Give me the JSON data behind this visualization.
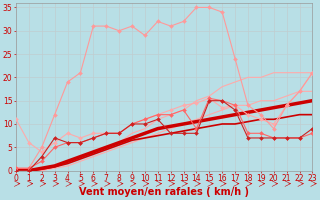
{
  "background_color": "#b8dfe6",
  "grid_color": "#c0cdd0",
  "xlabel": "Vent moyen/en rafales ( km/h )",
  "xlabel_color": "#cc0000",
  "xlabel_fontsize": 7,
  "tick_color": "#cc0000",
  "tick_fontsize": 5.5,
  "xlim": [
    0,
    23
  ],
  "ylim": [
    0,
    36
  ],
  "yticks": [
    0,
    5,
    10,
    15,
    20,
    25,
    30,
    35
  ],
  "xticks": [
    0,
    1,
    2,
    3,
    4,
    5,
    6,
    7,
    8,
    9,
    10,
    11,
    12,
    13,
    14,
    15,
    16,
    17,
    18,
    19,
    20,
    21,
    22,
    23
  ],
  "series": [
    {
      "x": [
        0,
        1,
        2,
        3,
        4,
        5,
        6,
        7,
        8,
        9,
        10,
        11,
        12,
        13,
        14,
        15,
        16,
        17,
        18,
        19,
        20,
        21,
        22,
        23
      ],
      "y": [
        0,
        0,
        0,
        1,
        2,
        3,
        4,
        5,
        6,
        8,
        9,
        11,
        12,
        13,
        15,
        16,
        18,
        19,
        20,
        20,
        21,
        21,
        21,
        21
      ],
      "color": "#ffaaaa",
      "linewidth": 0.8,
      "marker": null,
      "zorder": 2
    },
    {
      "x": [
        0,
        1,
        2,
        3,
        4,
        5,
        6,
        7,
        8,
        9,
        10,
        11,
        12,
        13,
        14,
        15,
        16,
        17,
        18,
        19,
        20,
        21,
        22,
        23
      ],
      "y": [
        0,
        0,
        0,
        0.5,
        1,
        2,
        3,
        4,
        5,
        6,
        7,
        8,
        9,
        10,
        11,
        12,
        13,
        14,
        14,
        15,
        15,
        16,
        17,
        17
      ],
      "color": "#ffaaaa",
      "linewidth": 0.8,
      "marker": null,
      "zorder": 2
    },
    {
      "x": [
        0,
        1,
        2,
        3,
        4,
        5,
        6,
        7,
        8,
        9,
        10,
        11,
        12,
        13,
        14,
        15,
        16,
        17,
        18,
        19,
        20,
        21,
        22,
        23
      ],
      "y": [
        0,
        0,
        0.5,
        1,
        2,
        3,
        4,
        5,
        6,
        7,
        8,
        9,
        9.5,
        10,
        10.5,
        11,
        11.5,
        12,
        12.5,
        13,
        13.5,
        14,
        14.5,
        15
      ],
      "color": "#cc0000",
      "linewidth": 2.5,
      "marker": null,
      "zorder": 3
    },
    {
      "x": [
        0,
        1,
        2,
        3,
        4,
        5,
        6,
        7,
        8,
        9,
        10,
        11,
        12,
        13,
        14,
        15,
        16,
        17,
        18,
        19,
        20,
        21,
        22,
        23
      ],
      "y": [
        0,
        0,
        0.3,
        0.8,
        1.5,
        2.5,
        3.5,
        4.5,
        5.5,
        6.5,
        7,
        7.5,
        8,
        8.5,
        9,
        9.5,
        10,
        10,
        10.5,
        11,
        11,
        11.5,
        12,
        12
      ],
      "color": "#cc0000",
      "linewidth": 1.2,
      "marker": null,
      "zorder": 3
    },
    {
      "x": [
        0,
        1,
        2,
        3,
        4,
        5,
        6,
        7,
        8,
        9,
        10,
        11,
        12,
        13,
        14,
        15,
        16,
        17,
        18,
        19,
        20,
        21,
        22,
        23
      ],
      "y": [
        11,
        6,
        4,
        6,
        8,
        7,
        8,
        8,
        8,
        10,
        11,
        12,
        13,
        14,
        14.5,
        15.5,
        13.5,
        14,
        12,
        11,
        10,
        14,
        17,
        21
      ],
      "color": "#ffaaaa",
      "linewidth": 0.8,
      "marker": "D",
      "markersize": 2,
      "zorder": 4
    },
    {
      "x": [
        0,
        1,
        2,
        3,
        4,
        5,
        6,
        7,
        8,
        9,
        10,
        11,
        12,
        13,
        14,
        15,
        16,
        17,
        18,
        19,
        20,
        21,
        22,
        23
      ],
      "y": [
        0.5,
        0.5,
        2,
        5,
        6,
        6,
        7,
        8,
        8,
        10,
        11,
        12,
        12,
        13,
        9,
        15.5,
        15,
        14,
        8,
        8,
        7,
        7,
        7,
        8
      ],
      "color": "#ff6666",
      "linewidth": 0.8,
      "marker": "D",
      "markersize": 2,
      "zorder": 5
    },
    {
      "x": [
        0,
        1,
        2,
        3,
        4,
        5,
        6,
        7,
        8,
        9,
        10,
        11,
        12,
        13,
        14,
        15,
        16,
        17,
        18,
        19,
        20,
        21,
        22,
        23
      ],
      "y": [
        0.5,
        0.5,
        5,
        12,
        19,
        21,
        31,
        31,
        30,
        31,
        29,
        32,
        31,
        32,
        35,
        35,
        34,
        24,
        14,
        12,
        9,
        14,
        17,
        21
      ],
      "color": "#ff9999",
      "linewidth": 0.8,
      "marker": "D",
      "markersize": 2,
      "zorder": 4
    },
    {
      "x": [
        0,
        1,
        2,
        3,
        4,
        5,
        6,
        7,
        8,
        9,
        10,
        11,
        12,
        13,
        14,
        15,
        16,
        17,
        18,
        19,
        20,
        21,
        22,
        23
      ],
      "y": [
        0,
        0,
        3,
        7,
        6,
        6,
        7,
        8,
        8,
        10,
        10,
        11,
        8,
        8,
        8,
        15,
        15,
        13,
        7,
        7,
        7,
        7,
        7,
        9
      ],
      "color": "#cc2222",
      "linewidth": 0.8,
      "marker": "D",
      "markersize": 2,
      "zorder": 5
    }
  ]
}
